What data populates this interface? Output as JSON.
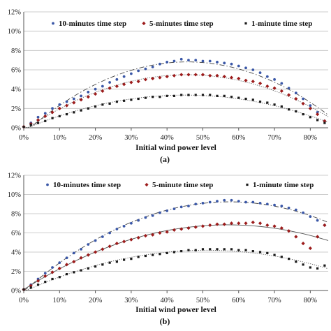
{
  "chart_data": [
    {
      "type": "scatter",
      "panel_label": "(a)",
      "xlabel": "Initial wind power level",
      "ylabel": "",
      "xlim": [
        0,
        85
      ],
      "ylim": [
        0,
        12
      ],
      "x_ticks": [
        "0%",
        "10%",
        "20%",
        "30%",
        "40%",
        "50%",
        "60%",
        "70%",
        "80%"
      ],
      "y_ticks": [
        "0%",
        "2%",
        "4%",
        "6%",
        "8%",
        "10%",
        "12%"
      ],
      "grid": "horizontal",
      "legend": "top",
      "series": [
        {
          "name": "10-minutes time step",
          "color": "#3a57a7",
          "marker": "circle",
          "trend_style": "long-dash",
          "x": [
            0,
            2,
            4,
            6,
            8,
            10,
            12,
            14,
            16,
            18,
            20,
            22,
            24,
            26,
            28,
            30,
            32,
            34,
            36,
            38,
            40,
            42,
            44,
            46,
            48,
            50,
            52,
            54,
            56,
            58,
            60,
            62,
            64,
            66,
            68,
            70,
            72,
            74,
            76,
            78,
            80,
            82,
            84
          ],
          "values": [
            0.1,
            0.5,
            1.1,
            1.5,
            2.0,
            2.4,
            2.7,
            3.0,
            3.3,
            3.7,
            4.0,
            4.3,
            4.7,
            5.0,
            5.3,
            5.6,
            5.9,
            6.1,
            6.3,
            6.6,
            6.8,
            6.9,
            7.1,
            7.0,
            7.0,
            6.9,
            6.9,
            6.8,
            6.7,
            6.6,
            6.4,
            6.2,
            6.0,
            5.7,
            5.3,
            5.0,
            4.6,
            4.1,
            3.6,
            3.0,
            2.3,
            1.6,
            0.7
          ]
        },
        {
          "name": "5-minutes time step",
          "color": "#9c1b1b",
          "marker": "diamond",
          "trend_style": "dotted",
          "x": [
            0,
            2,
            4,
            6,
            8,
            10,
            12,
            14,
            16,
            18,
            20,
            22,
            24,
            26,
            28,
            30,
            32,
            34,
            36,
            38,
            40,
            42,
            44,
            46,
            48,
            50,
            52,
            54,
            56,
            58,
            60,
            62,
            64,
            66,
            68,
            70,
            72,
            74,
            76,
            78,
            80,
            82,
            84
          ],
          "values": [
            0.1,
            0.4,
            0.8,
            1.2,
            1.6,
            2.0,
            2.3,
            2.6,
            2.9,
            3.2,
            3.5,
            3.8,
            4.1,
            4.3,
            4.5,
            4.7,
            4.8,
            5.0,
            5.1,
            5.2,
            5.3,
            5.4,
            5.5,
            5.5,
            5.5,
            5.5,
            5.4,
            5.4,
            5.3,
            5.2,
            5.1,
            4.9,
            4.8,
            4.6,
            4.3,
            4.1,
            3.8,
            3.4,
            3.0,
            2.5,
            2.0,
            1.4,
            0.7
          ]
        },
        {
          "name": "1-minute time step",
          "color": "#1a1a1a",
          "marker": "square",
          "trend_style": "dotted",
          "x": [
            0,
            2,
            4,
            6,
            8,
            10,
            12,
            14,
            16,
            18,
            20,
            22,
            24,
            26,
            28,
            30,
            32,
            34,
            36,
            38,
            40,
            42,
            44,
            46,
            48,
            50,
            52,
            54,
            56,
            58,
            60,
            62,
            64,
            66,
            68,
            70,
            72,
            74,
            76,
            78,
            80,
            82,
            84
          ],
          "values": [
            0.1,
            0.3,
            0.5,
            0.7,
            1.0,
            1.2,
            1.4,
            1.6,
            1.8,
            2.0,
            2.2,
            2.4,
            2.5,
            2.7,
            2.8,
            2.9,
            3.0,
            3.1,
            3.2,
            3.2,
            3.3,
            3.3,
            3.4,
            3.4,
            3.4,
            3.4,
            3.4,
            3.3,
            3.3,
            3.2,
            3.1,
            3.0,
            2.9,
            2.7,
            2.6,
            2.4,
            2.2,
            1.9,
            1.7,
            1.4,
            1.1,
            0.8,
            0.5
          ]
        }
      ]
    },
    {
      "type": "scatter",
      "panel_label": "(b)",
      "xlabel": "Initial wind power level",
      "ylabel": "",
      "xlim": [
        0,
        85
      ],
      "ylim": [
        0,
        12
      ],
      "x_ticks": [
        "0%",
        "10%",
        "20%",
        "30%",
        "40%",
        "50%",
        "60%",
        "70%",
        "80%"
      ],
      "y_ticks": [
        "0%",
        "2%",
        "4%",
        "6%",
        "8%",
        "10%",
        "12%"
      ],
      "grid": "horizontal",
      "legend": "top",
      "series": [
        {
          "name": "10-minutes time step",
          "color": "#3a57a7",
          "marker": "circle",
          "trend_style": "long-dash",
          "x": [
            0,
            2,
            4,
            6,
            8,
            10,
            12,
            14,
            16,
            18,
            20,
            22,
            24,
            26,
            28,
            30,
            32,
            34,
            36,
            38,
            40,
            42,
            44,
            46,
            48,
            50,
            52,
            54,
            56,
            58,
            60,
            62,
            64,
            66,
            68,
            70,
            72,
            74,
            76,
            78,
            80,
            82,
            84
          ],
          "values": [
            0.1,
            0.6,
            1.2,
            1.8,
            2.4,
            2.9,
            3.4,
            3.9,
            4.3,
            4.8,
            5.2,
            5.6,
            6.0,
            6.4,
            6.7,
            7.0,
            7.3,
            7.6,
            7.8,
            8.1,
            8.3,
            8.5,
            8.7,
            8.8,
            9.0,
            9.1,
            9.2,
            9.3,
            9.4,
            9.4,
            9.3,
            9.2,
            9.2,
            9.1,
            9.0,
            8.9,
            8.8,
            8.6,
            8.4,
            8.1,
            7.7,
            7.3,
            6.8
          ]
        },
        {
          "name": "5-minute time step",
          "color": "#9c1b1b",
          "marker": "diamond",
          "trend_style": "solid",
          "x": [
            0,
            2,
            4,
            6,
            8,
            10,
            12,
            14,
            16,
            18,
            20,
            22,
            24,
            26,
            28,
            30,
            32,
            34,
            36,
            38,
            40,
            42,
            44,
            46,
            48,
            50,
            52,
            54,
            56,
            58,
            60,
            62,
            64,
            66,
            68,
            70,
            72,
            74,
            76,
            78,
            80,
            82,
            84
          ],
          "values": [
            0.1,
            0.5,
            1.0,
            1.5,
            1.9,
            2.3,
            2.7,
            3.0,
            3.4,
            3.7,
            4.0,
            4.3,
            4.6,
            4.9,
            5.1,
            5.3,
            5.5,
            5.7,
            5.8,
            6.0,
            6.1,
            6.3,
            6.4,
            6.5,
            6.6,
            6.7,
            6.8,
            6.9,
            6.9,
            7.0,
            7.0,
            7.0,
            7.1,
            7.0,
            6.8,
            6.7,
            6.5,
            6.2,
            5.6,
            4.9,
            4.4,
            5.6,
            6.8
          ]
        },
        {
          "name": "1-minute time step",
          "color": "#1a1a1a",
          "marker": "square",
          "trend_style": "dotted",
          "x": [
            0,
            2,
            4,
            6,
            8,
            10,
            12,
            14,
            16,
            18,
            20,
            22,
            24,
            26,
            28,
            30,
            32,
            34,
            36,
            38,
            40,
            42,
            44,
            46,
            48,
            50,
            52,
            54,
            56,
            58,
            60,
            62,
            64,
            66,
            68,
            70,
            72,
            74,
            76,
            78,
            80,
            82,
            84
          ],
          "values": [
            0.1,
            0.3,
            0.6,
            0.9,
            1.2,
            1.4,
            1.7,
            1.9,
            2.1,
            2.3,
            2.5,
            2.7,
            2.9,
            3.0,
            3.2,
            3.3,
            3.5,
            3.6,
            3.7,
            3.8,
            3.9,
            4.0,
            4.1,
            4.2,
            4.2,
            4.3,
            4.3,
            4.3,
            4.3,
            4.3,
            4.2,
            4.2,
            4.1,
            4.0,
            3.9,
            3.7,
            3.5,
            3.3,
            3.0,
            2.7,
            2.4,
            2.3,
            2.6
          ]
        }
      ]
    }
  ]
}
